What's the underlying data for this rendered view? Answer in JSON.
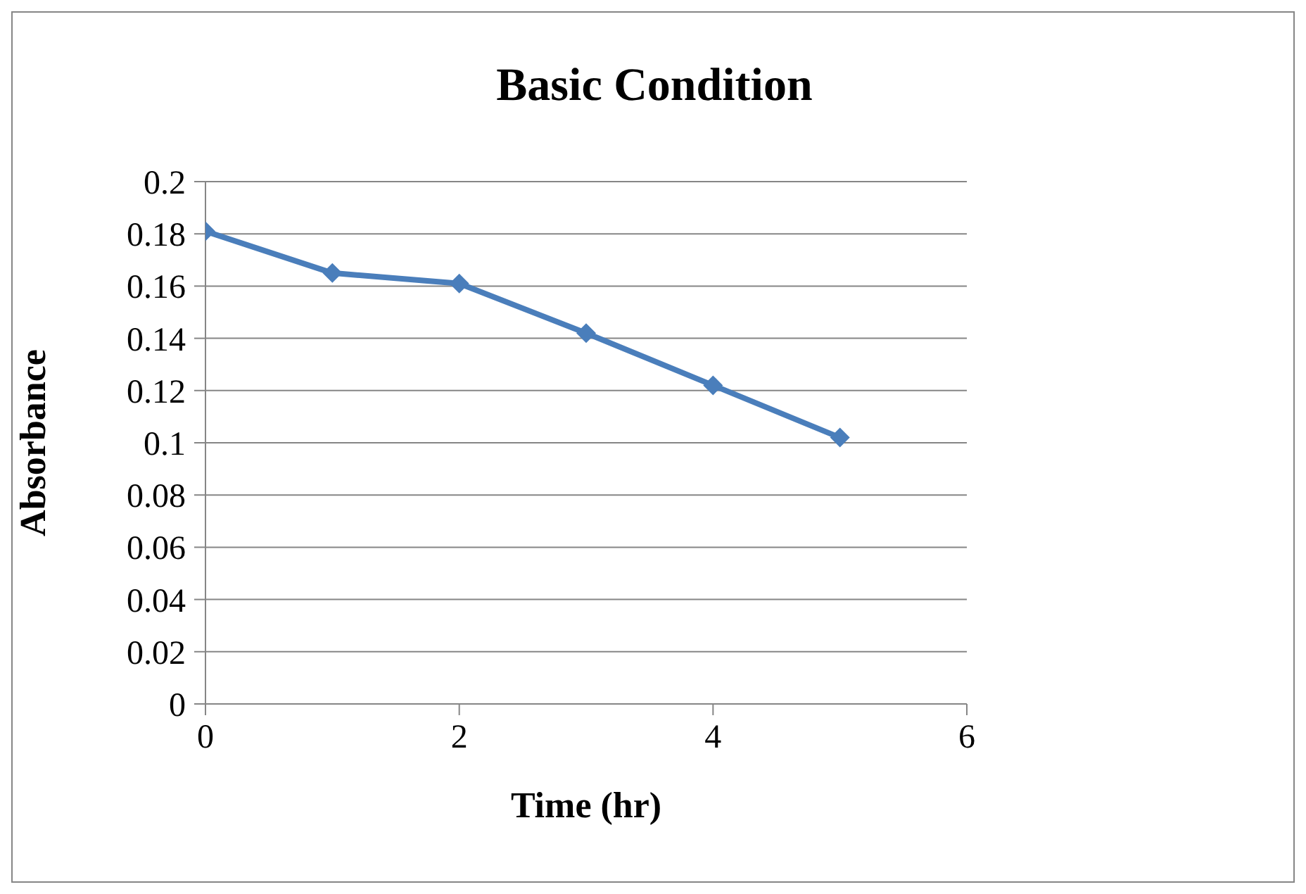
{
  "chart_data": {
    "type": "line",
    "title": "Basic Condition",
    "xlabel": "Time (hr)",
    "ylabel": "Absorbance",
    "x": [
      0,
      1,
      2,
      3,
      4,
      5
    ],
    "series": [
      {
        "color": "#4a7ebb",
        "values": [
          0.181,
          0.165,
          0.161,
          0.142,
          0.122,
          0.102
        ]
      }
    ],
    "xlim": [
      0,
      6
    ],
    "xticks": [
      0,
      2,
      4,
      6
    ],
    "ylim": [
      0,
      0.2
    ],
    "yticks": [
      0,
      0.02,
      0.04,
      0.06,
      0.08,
      0.1,
      0.12,
      0.14,
      0.16,
      0.18,
      0.2
    ],
    "grid": "y",
    "legend": false,
    "marker": "diamond",
    "line_style": "solid"
  }
}
